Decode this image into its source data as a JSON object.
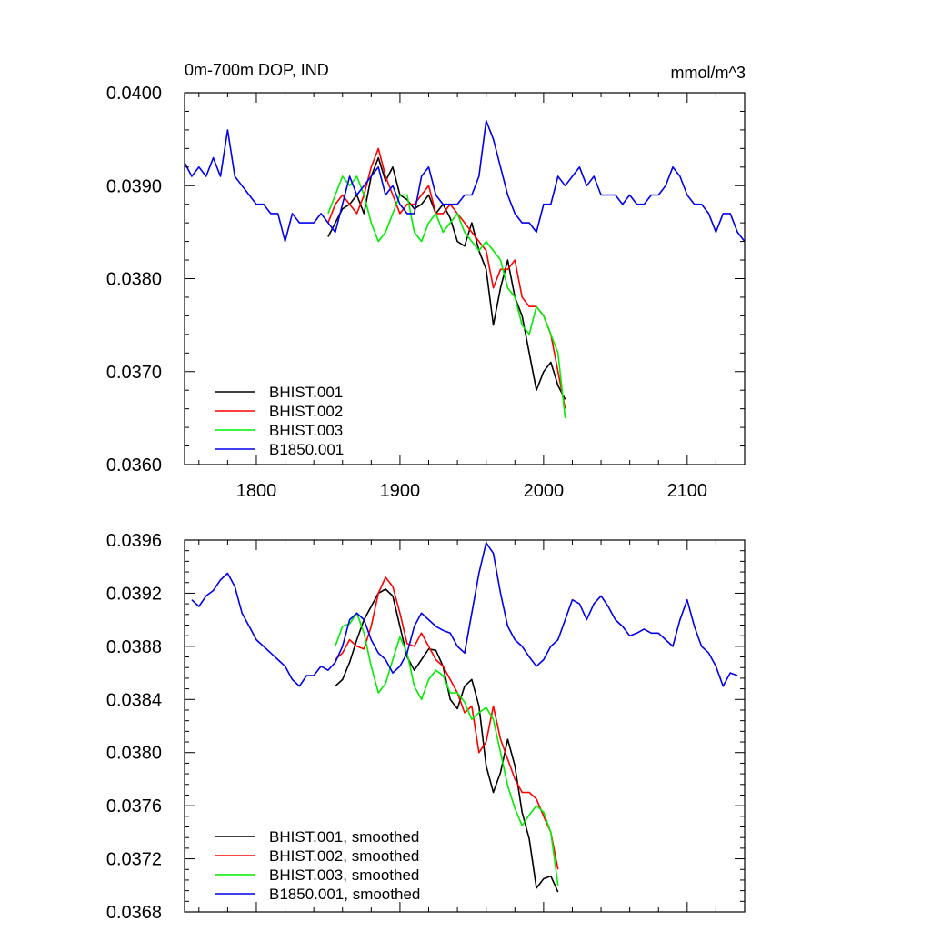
{
  "chart_data": [
    {
      "type": "line",
      "title": "0m-700m DOP, IND",
      "units": "mmol/m^3",
      "xlim": [
        1750,
        2140
      ],
      "ylim": [
        0.036,
        0.04
      ],
      "xticks": [
        1800,
        1900,
        2000,
        2100
      ],
      "xtick_labels": [
        "1800",
        "1900",
        "2000",
        "2100"
      ],
      "yticks": [
        0.036,
        0.037,
        0.038,
        0.039,
        0.04
      ],
      "ytick_labels": [
        "0.0360",
        "0.0370",
        "0.0380",
        "0.0390",
        "0.0400"
      ],
      "legend_position": "bottom-left",
      "series": [
        {
          "name": "BHIST.001",
          "color": "#000000",
          "x": [
            1850,
            1855,
            1860,
            1865,
            1870,
            1875,
            1880,
            1885,
            1890,
            1895,
            1900,
            1905,
            1910,
            1915,
            1920,
            1925,
            1930,
            1935,
            1940,
            1945,
            1950,
            1955,
            1960,
            1965,
            1970,
            1975,
            1980,
            1985,
            1990,
            1995,
            2000,
            2005,
            2010,
            2015
          ],
          "y": [
            0.03845,
            0.0386,
            0.03875,
            0.0388,
            0.0389,
            0.0387,
            0.0391,
            0.0393,
            0.03905,
            0.0392,
            0.0389,
            0.03885,
            0.03875,
            0.0388,
            0.0389,
            0.0387,
            0.0388,
            0.03865,
            0.0384,
            0.03835,
            0.0386,
            0.0383,
            0.0381,
            0.0375,
            0.0379,
            0.0382,
            0.0378,
            0.0376,
            0.0372,
            0.0368,
            0.037,
            0.0371,
            0.03685,
            0.0367
          ]
        },
        {
          "name": "BHIST.002",
          "color": "#ff0000",
          "x": [
            1850,
            1855,
            1860,
            1865,
            1870,
            1875,
            1880,
            1885,
            1890,
            1895,
            1900,
            1905,
            1910,
            1915,
            1920,
            1925,
            1930,
            1935,
            1940,
            1945,
            1950,
            1955,
            1960,
            1965,
            1970,
            1975,
            1980,
            1985,
            1990,
            1995,
            2000,
            2005,
            2010,
            2015
          ],
          "y": [
            0.0386,
            0.0388,
            0.0389,
            0.0388,
            0.0387,
            0.0389,
            0.0392,
            0.0394,
            0.0391,
            0.0389,
            0.0387,
            0.0388,
            0.0388,
            0.0389,
            0.039,
            0.0387,
            0.0387,
            0.0388,
            0.0387,
            0.0386,
            0.0385,
            0.0384,
            0.0383,
            0.0379,
            0.0381,
            0.0381,
            0.0382,
            0.0378,
            0.0377,
            0.0377,
            0.0376,
            0.0374,
            0.037,
            0.0366
          ]
        },
        {
          "name": "BHIST.003",
          "color": "#00ee00",
          "x": [
            1850,
            1855,
            1860,
            1865,
            1870,
            1875,
            1880,
            1885,
            1890,
            1895,
            1900,
            1905,
            1910,
            1915,
            1920,
            1925,
            1930,
            1935,
            1940,
            1945,
            1950,
            1955,
            1960,
            1965,
            1970,
            1975,
            1980,
            1985,
            1990,
            1995,
            2000,
            2005,
            2010,
            2015
          ],
          "y": [
            0.0387,
            0.0389,
            0.0391,
            0.039,
            0.0391,
            0.0389,
            0.0386,
            0.0384,
            0.0385,
            0.0387,
            0.0389,
            0.0389,
            0.0385,
            0.0384,
            0.0386,
            0.0387,
            0.0385,
            0.0386,
            0.0387,
            0.0385,
            0.0384,
            0.0383,
            0.0384,
            0.0383,
            0.0382,
            0.0379,
            0.0378,
            0.0375,
            0.0374,
            0.0377,
            0.0376,
            0.0374,
            0.0372,
            0.0365
          ]
        },
        {
          "name": "B1850.001",
          "color": "#0000ee",
          "x": [
            1750,
            1755,
            1760,
            1765,
            1770,
            1775,
            1780,
            1785,
            1790,
            1795,
            1800,
            1805,
            1810,
            1815,
            1820,
            1825,
            1830,
            1835,
            1840,
            1845,
            1850,
            1855,
            1860,
            1865,
            1870,
            1875,
            1880,
            1885,
            1890,
            1895,
            1900,
            1905,
            1910,
            1915,
            1920,
            1925,
            1930,
            1935,
            1940,
            1945,
            1950,
            1955,
            1960,
            1965,
            1970,
            1975,
            1980,
            1985,
            1990,
            1995,
            2000,
            2005,
            2010,
            2015,
            2020,
            2025,
            2030,
            2035,
            2040,
            2045,
            2050,
            2055,
            2060,
            2065,
            2070,
            2075,
            2080,
            2085,
            2090,
            2095,
            2100,
            2105,
            2110,
            2115,
            2120,
            2125,
            2130,
            2135,
            2140
          ],
          "y": [
            0.03925,
            0.0391,
            0.0392,
            0.0391,
            0.0393,
            0.0391,
            0.0396,
            0.0391,
            0.039,
            0.0389,
            0.0388,
            0.0388,
            0.0387,
            0.0387,
            0.0384,
            0.0387,
            0.0386,
            0.0386,
            0.0386,
            0.0387,
            0.0386,
            0.0385,
            0.0388,
            0.0391,
            0.0389,
            0.039,
            0.0391,
            0.0392,
            0.0389,
            0.039,
            0.0388,
            0.0387,
            0.0387,
            0.0391,
            0.0392,
            0.0389,
            0.0388,
            0.0388,
            0.0388,
            0.0389,
            0.0389,
            0.0391,
            0.0397,
            0.0395,
            0.0392,
            0.0389,
            0.0387,
            0.0386,
            0.0386,
            0.0385,
            0.0388,
            0.0388,
            0.0391,
            0.039,
            0.0391,
            0.0392,
            0.039,
            0.0391,
            0.0389,
            0.0389,
            0.0389,
            0.0388,
            0.0389,
            0.0388,
            0.0388,
            0.0389,
            0.0389,
            0.039,
            0.0392,
            0.0391,
            0.0389,
            0.0388,
            0.0388,
            0.0387,
            0.0385,
            0.0387,
            0.0387,
            0.0385,
            0.0384
          ]
        }
      ]
    },
    {
      "type": "line",
      "title": "",
      "xlim": [
        1750,
        2140
      ],
      "ylim": [
        0.0368,
        0.0396
      ],
      "xticks": [
        1800,
        1900,
        2000,
        2100
      ],
      "yticks": [
        0.0368,
        0.0372,
        0.0376,
        0.038,
        0.0384,
        0.0388,
        0.0392,
        0.0396
      ],
      "ytick_labels": [
        "0.0368",
        "0.0372",
        "0.0376",
        "0.0380",
        "0.0384",
        "0.0388",
        "0.0392",
        "0.0396"
      ],
      "legend_position": "bottom-left",
      "series": [
        {
          "name": "BHIST.001, smoothed",
          "color": "#000000",
          "x": [
            1855,
            1860,
            1865,
            1870,
            1875,
            1880,
            1885,
            1890,
            1895,
            1900,
            1905,
            1910,
            1915,
            1920,
            1925,
            1930,
            1935,
            1940,
            1945,
            1950,
            1955,
            1960,
            1965,
            1970,
            1975,
            1980,
            1985,
            1990,
            1995,
            2000,
            2005,
            2010
          ],
          "y": [
            0.0385,
            0.03855,
            0.03868,
            0.03885,
            0.039,
            0.0391,
            0.0392,
            0.03923,
            0.03918,
            0.03895,
            0.03872,
            0.03862,
            0.0387,
            0.03878,
            0.03877,
            0.03865,
            0.0384,
            0.03833,
            0.0385,
            0.03855,
            0.03835,
            0.0379,
            0.0377,
            0.03785,
            0.0381,
            0.0379,
            0.03755,
            0.03735,
            0.03698,
            0.03705,
            0.03707,
            0.03695
          ]
        },
        {
          "name": "BHIST.002, smoothed",
          "color": "#ff0000",
          "x": [
            1855,
            1860,
            1865,
            1870,
            1875,
            1880,
            1885,
            1890,
            1895,
            1900,
            1905,
            1910,
            1915,
            1920,
            1925,
            1930,
            1935,
            1940,
            1945,
            1950,
            1955,
            1960,
            1965,
            1970,
            1975,
            1980,
            1985,
            1990,
            1995,
            2000,
            2005,
            2010
          ],
          "y": [
            0.0387,
            0.03875,
            0.03885,
            0.0388,
            0.03878,
            0.03895,
            0.0392,
            0.03932,
            0.03925,
            0.03905,
            0.03882,
            0.0388,
            0.0389,
            0.0388,
            0.0387,
            0.03865,
            0.03855,
            0.03845,
            0.0383,
            0.03835,
            0.038,
            0.03808,
            0.03835,
            0.0381,
            0.03795,
            0.0378,
            0.0377,
            0.0377,
            0.03765,
            0.03752,
            0.0374,
            0.03712
          ]
        },
        {
          "name": "BHIST.003, smoothed",
          "color": "#00ee00",
          "x": [
            1855,
            1860,
            1865,
            1870,
            1875,
            1880,
            1885,
            1890,
            1895,
            1900,
            1905,
            1910,
            1915,
            1920,
            1925,
            1930,
            1935,
            1940,
            1945,
            1950,
            1955,
            1960,
            1965,
            1970,
            1975,
            1980,
            1985,
            1990,
            1995,
            2000,
            2005,
            2010
          ],
          "y": [
            0.0388,
            0.03895,
            0.03897,
            0.03905,
            0.0389,
            0.03865,
            0.03845,
            0.03852,
            0.0387,
            0.03887,
            0.03875,
            0.0385,
            0.0384,
            0.03855,
            0.03862,
            0.03858,
            0.03845,
            0.03845,
            0.03838,
            0.03825,
            0.0383,
            0.03834,
            0.03825,
            0.038,
            0.03775,
            0.03758,
            0.03745,
            0.03753,
            0.0376,
            0.03755,
            0.0374,
            0.037
          ]
        },
        {
          "name": "B1850.001, smoothed",
          "color": "#0000ee",
          "x": [
            1755,
            1760,
            1765,
            1770,
            1775,
            1780,
            1785,
            1790,
            1795,
            1800,
            1805,
            1810,
            1815,
            1820,
            1825,
            1830,
            1835,
            1840,
            1845,
            1850,
            1855,
            1860,
            1865,
            1870,
            1875,
            1880,
            1885,
            1890,
            1895,
            1900,
            1905,
            1910,
            1915,
            1920,
            1925,
            1930,
            1935,
            1940,
            1945,
            1950,
            1955,
            1960,
            1965,
            1970,
            1975,
            1980,
            1985,
            1990,
            1995,
            2000,
            2005,
            2010,
            2015,
            2020,
            2025,
            2030,
            2035,
            2040,
            2045,
            2050,
            2055,
            2060,
            2065,
            2070,
            2075,
            2080,
            2085,
            2090,
            2095,
            2100,
            2105,
            2110,
            2115,
            2120,
            2125,
            2130,
            2135
          ],
          "y": [
            0.03915,
            0.0391,
            0.03918,
            0.03922,
            0.0393,
            0.03935,
            0.03925,
            0.03905,
            0.03895,
            0.03885,
            0.0388,
            0.03875,
            0.0387,
            0.03865,
            0.03855,
            0.0385,
            0.03858,
            0.03858,
            0.03865,
            0.03862,
            0.03868,
            0.0388,
            0.039,
            0.03905,
            0.039,
            0.03885,
            0.03875,
            0.0387,
            0.0386,
            0.03865,
            0.03875,
            0.03895,
            0.03905,
            0.039,
            0.03895,
            0.03892,
            0.0389,
            0.0388,
            0.03875,
            0.03905,
            0.03935,
            0.03958,
            0.0395,
            0.0392,
            0.03895,
            0.03885,
            0.0388,
            0.03872,
            0.03865,
            0.0387,
            0.0388,
            0.03885,
            0.039,
            0.03915,
            0.03912,
            0.039,
            0.03912,
            0.03918,
            0.0391,
            0.039,
            0.03895,
            0.03888,
            0.0389,
            0.03893,
            0.0389,
            0.0389,
            0.03885,
            0.0388,
            0.039,
            0.03915,
            0.03895,
            0.0388,
            0.03875,
            0.03865,
            0.0385,
            0.0386,
            0.03858
          ]
        }
      ]
    }
  ]
}
